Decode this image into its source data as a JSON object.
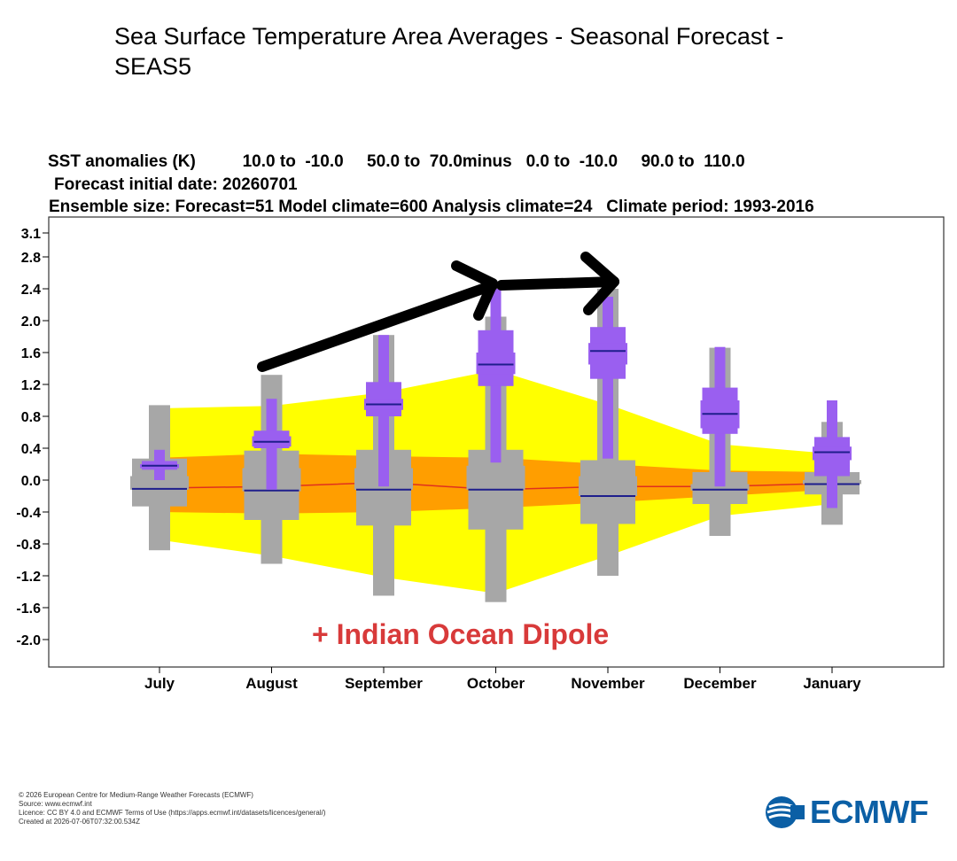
{
  "page_title": "Sea Surface Temperature Area Averages - Seasonal Forecast - SEAS5",
  "header": {
    "line1": "SST anomalies (K)          10.0 to  -10.0     50.0 to  70.0minus   0.0 to  -10.0     90.0 to  110.0",
    "line2": "Forecast initial date: 20260701",
    "line3": "Ensemble size: Forecast=51 Model climate=600 Analysis climate=24   Climate period: 1993-2016"
  },
  "annotation": "+ Indian Ocean Dipole",
  "footer": {
    "copyright": "© 2026 European Centre for Medium-Range Weather Forecasts (ECMWF)",
    "source": "Source: www.ecmwf.int",
    "licence": "Licence: CC BY 4.0 and ECMWF Terms of Use (https://apps.ecmwf.int/datasets/licences/general/)",
    "created": "Created at 2026-07-06T07:32:00.534Z"
  },
  "logo": {
    "text": "ECMWF",
    "icon": "ecmwf-logo-icon",
    "color": "#0b5fa5"
  },
  "colors": {
    "climate_outer": "#ffff00",
    "climate_inner": "#ff9e00",
    "model_climate": "#a7a7a7",
    "forecast": "#9a5ff0",
    "analysis_line": "#e0301e",
    "median": "#1e1e8c",
    "annotation": "#d83a3a",
    "arrow": "#000000"
  },
  "chart_data": {
    "type": "box",
    "ylim": [
      -2.3,
      3.1
    ],
    "yticks": [
      3.1,
      2.8,
      2.4,
      2.0,
      1.6,
      1.2,
      0.8,
      0.4,
      0.0,
      -0.4,
      -0.8,
      -1.2,
      -1.6,
      -2.0
    ],
    "ytick_labels": [
      "3.1",
      "2.8",
      "2.4",
      "2.0",
      "1.6",
      "1.2",
      "0.8",
      "0.4",
      "0.0",
      "-0.4",
      "-0.8",
      "-1.2",
      "-1.6",
      "-2.0"
    ],
    "categories": [
      "July",
      "August",
      "September",
      "October",
      "November",
      "December",
      "January"
    ],
    "climate_outer_band": {
      "upper": [
        0.9,
        0.93,
        1.1,
        1.38,
        0.95,
        0.45,
        0.33
      ],
      "lower": [
        -0.75,
        -0.95,
        -1.22,
        -1.42,
        -0.95,
        -0.45,
        -0.3
      ]
    },
    "climate_inner_band": {
      "upper": [
        0.28,
        0.33,
        0.3,
        0.28,
        0.2,
        0.12,
        0.1
      ],
      "lower": [
        -0.4,
        -0.42,
        -0.4,
        -0.35,
        -0.28,
        -0.2,
        -0.12
      ]
    },
    "analysis_line": [
      -0.1,
      -0.08,
      -0.03,
      -0.12,
      -0.08,
      -0.08,
      -0.04
    ],
    "model_climate": [
      {
        "min": -0.88,
        "p10": -0.33,
        "p33": -0.12,
        "median": -0.11,
        "p66": 0.05,
        "p90": 0.27,
        "max": 0.94
      },
      {
        "min": -1.05,
        "p10": -0.5,
        "p33": -0.14,
        "median": -0.13,
        "p66": 0.15,
        "p90": 0.37,
        "max": 1.32
      },
      {
        "min": -1.45,
        "p10": -0.57,
        "p33": -0.12,
        "median": -0.12,
        "p66": 0.15,
        "p90": 0.38,
        "max": 1.82
      },
      {
        "min": -1.53,
        "p10": -0.62,
        "p33": -0.12,
        "median": -0.12,
        "p66": 0.18,
        "p90": 0.38,
        "max": 2.05
      },
      {
        "min": -1.2,
        "p10": -0.55,
        "p33": -0.2,
        "median": -0.2,
        "p66": 0.05,
        "p90": 0.25,
        "max": 2.4
      },
      {
        "min": -0.7,
        "p10": -0.3,
        "p33": -0.13,
        "median": -0.12,
        "p66": -0.05,
        "p90": 0.1,
        "max": 1.66
      },
      {
        "min": -0.56,
        "p10": -0.18,
        "p33": -0.05,
        "median": -0.05,
        "p66": 0.0,
        "p90": 0.1,
        "max": 0.73
      }
    ],
    "forecast": [
      {
        "min": 0.0,
        "p10": 0.13,
        "p33": 0.15,
        "median": 0.18,
        "p66": 0.2,
        "p90": 0.24,
        "max": 0.38
      },
      {
        "min": -0.12,
        "p10": 0.4,
        "p33": 0.42,
        "median": 0.48,
        "p66": 0.55,
        "p90": 0.62,
        "max": 1.02
      },
      {
        "min": -0.08,
        "p10": 0.8,
        "p33": 0.88,
        "median": 0.95,
        "p66": 1.02,
        "p90": 1.23,
        "max": 1.82
      },
      {
        "min": 0.22,
        "p10": 1.18,
        "p33": 1.33,
        "median": 1.45,
        "p66": 1.6,
        "p90": 1.88,
        "max": 2.4
      },
      {
        "min": 0.27,
        "p10": 1.27,
        "p33": 1.45,
        "median": 1.62,
        "p66": 1.72,
        "p90": 1.92,
        "max": 2.3
      },
      {
        "min": -0.08,
        "p10": 0.58,
        "p33": 0.65,
        "median": 0.83,
        "p66": 1.0,
        "p90": 1.16,
        "max": 1.67
      },
      {
        "min": -0.35,
        "p10": 0.05,
        "p33": 0.25,
        "median": 0.35,
        "p66": 0.42,
        "p90": 0.54,
        "max": 1.0
      }
    ]
  }
}
